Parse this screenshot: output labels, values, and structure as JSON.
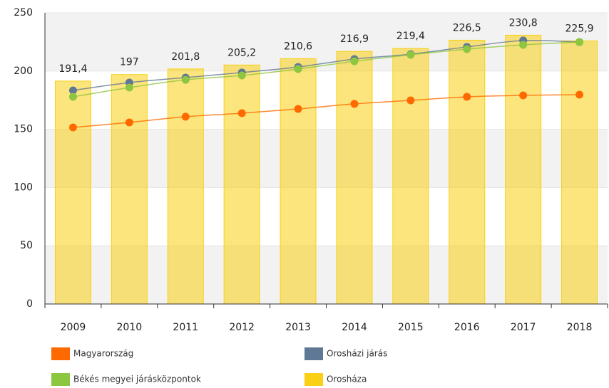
{
  "chart_data": {
    "type": "bar_line",
    "categories": [
      "2009",
      "2010",
      "2011",
      "2012",
      "2013",
      "2014",
      "2015",
      "2016",
      "2017",
      "2018"
    ],
    "ylim": [
      0,
      250
    ],
    "yticks": [
      0,
      50,
      100,
      150,
      200,
      250
    ],
    "grid": true,
    "legend": "bottom",
    "series": [
      {
        "name": "Magyarország",
        "color": "#ff6a00",
        "kind": "line",
        "values": [
          151.6,
          155.9,
          160.8,
          163.8,
          167.5,
          171.8,
          174.8,
          177.9,
          179.1,
          179.7
        ]
      },
      {
        "name": "Orosházi járás",
        "color": "#5f7896",
        "kind": "line",
        "values": [
          183.4,
          190.1,
          194.4,
          198.7,
          203.5,
          210.3,
          214.5,
          220.7,
          226.2,
          224.9
        ]
      },
      {
        "name": "Békés megyei járásközpontok",
        "color": "#8dc63f",
        "kind": "line",
        "values": [
          177.9,
          185.8,
          192.5,
          196.2,
          201.7,
          208.4,
          213.9,
          218.8,
          222.5,
          224.9
        ]
      },
      {
        "name": "Orosháza",
        "color": "#f9d013",
        "kind": "bar",
        "values": [
          191.4,
          197,
          201.8,
          205.2,
          210.6,
          216.9,
          219.4,
          226.5,
          230.8,
          225.9
        ],
        "value_labels": [
          "191,4",
          "197",
          "201,8",
          "205,2",
          "210,6",
          "216,9",
          "219,4",
          "226,5",
          "230,8",
          "225,9"
        ]
      }
    ]
  }
}
